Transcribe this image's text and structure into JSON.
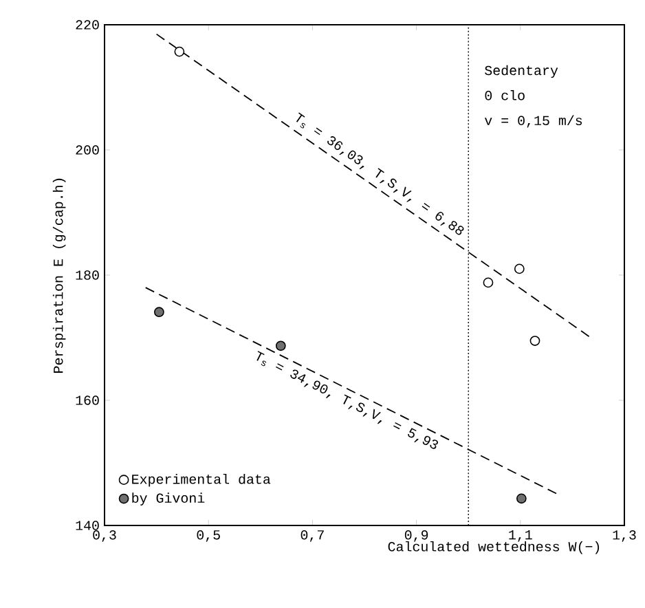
{
  "chart_data": {
    "type": "scatter",
    "xlabel": "Calculated wettedness  W(−)",
    "ylabel": "Perspiration  E  (g/cap.h)",
    "xlim": [
      0.3,
      1.3
    ],
    "ylim": [
      140,
      220
    ],
    "xticks": [
      {
        "value": 0.3,
        "label": "0,3"
      },
      {
        "value": 0.5,
        "label": "0,5"
      },
      {
        "value": 0.7,
        "label": "0,7"
      },
      {
        "value": 0.9,
        "label": "0,9"
      },
      {
        "value": 1.1,
        "label": "1,1"
      },
      {
        "value": 1.3,
        "label": "1,3"
      }
    ],
    "yticks": [
      140,
      160,
      180,
      200,
      220
    ],
    "series": [
      {
        "name": "Experimental data",
        "color": "#ffffff",
        "x": [
          0.444,
          1.038,
          1.098,
          1.128
        ],
        "values": [
          215.7,
          178.8,
          181.0,
          169.5
        ]
      },
      {
        "name": "by Givoni",
        "color": "#707070",
        "x": [
          0.405,
          0.639,
          1.102
        ],
        "values": [
          174.1,
          168.7,
          144.3
        ]
      },
      {
        "type": "line",
        "marker": "none",
        "line_style": "dashed",
        "color": "#000000",
        "x": [
          0.4,
          1.232
        ],
        "values": [
          218.5,
          170.2
        ]
      },
      {
        "type": "line",
        "marker": "none",
        "line_style": "dashed",
        "color": "#000000",
        "x": [
          0.379,
          1.169
        ],
        "values": [
          178.0,
          145.1
        ]
      }
    ],
    "ref_lines": [
      {
        "axis": "x",
        "value": 1.0,
        "line_style": "dotted",
        "color": "#000000"
      }
    ],
    "annotations": [
      "T$_{s}$ = 36,03, T,S,V, = 6,88",
      "T$_{s}$ = 34,90, T,S,V, = 5,93",
      "Sedentary",
      "0 clo",
      "v = 0,15  m/s"
    ],
    "legend": "bottom left",
    "marker": "circle",
    "grid": false
  }
}
